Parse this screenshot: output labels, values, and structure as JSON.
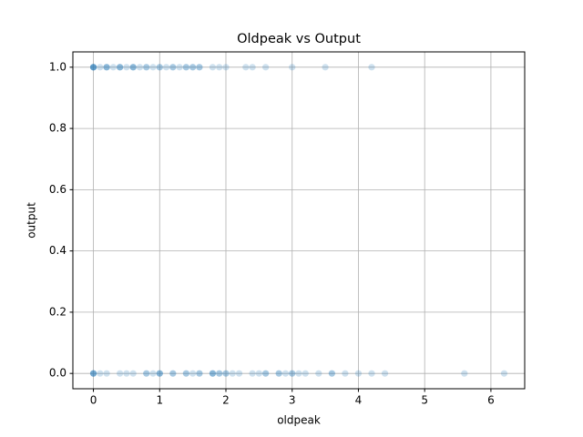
{
  "chart_data": {
    "type": "scatter",
    "title": "Oldpeak vs Output",
    "x_label": "oldpeak",
    "y_label": "output",
    "color": "#1f77b4",
    "alpha": 0.22,
    "grid": true,
    "xlim": [
      -0.31,
      6.51
    ],
    "ylim": [
      -0.05,
      1.05
    ],
    "xticks": [
      0,
      1,
      2,
      3,
      4,
      5,
      6
    ],
    "yticks": [
      {
        "value": 0,
        "label": "0.0"
      },
      {
        "value": 0.2,
        "label": "0.2"
      },
      {
        "value": 0.4,
        "label": "0.4"
      },
      {
        "value": 0.6,
        "label": "0.6"
      },
      {
        "value": 0.8,
        "label": "0.8"
      },
      {
        "value": 1,
        "label": "1.0"
      }
    ],
    "x": [
      0,
      0,
      0,
      0,
      0,
      0.1,
      0.2,
      0.2,
      0.2,
      0.3,
      0.4,
      0.4,
      0.4,
      0.5,
      0.6,
      0.6,
      0.6,
      0.7,
      0.8,
      0.8,
      0.9,
      1.0,
      1.0,
      1.1,
      1.2,
      1.2,
      1.3,
      1.4,
      1.4,
      1.5,
      1.5,
      1.6,
      1.6,
      1.8,
      1.9,
      2.0,
      2.3,
      2.4,
      2.6,
      3.0,
      3.5,
      4.2,
      0,
      0,
      0,
      0,
      0.1,
      0.2,
      0.4,
      0.5,
      0.6,
      0.8,
      0.8,
      0.9,
      1.0,
      1.0,
      1.0,
      1.2,
      1.2,
      1.4,
      1.4,
      1.5,
      1.6,
      1.6,
      1.8,
      1.8,
      1.8,
      1.9,
      1.9,
      2.0,
      2.0,
      2.1,
      2.2,
      2.4,
      2.5,
      2.6,
      2.6,
      2.8,
      2.8,
      2.9,
      3.0,
      3.0,
      3.1,
      3.2,
      3.4,
      3.6,
      3.6,
      3.8,
      4.0,
      4.2,
      4.4,
      5.6,
      6.2
    ],
    "values": [
      1,
      1,
      1,
      1,
      1,
      1,
      1,
      1,
      1,
      1,
      1,
      1,
      1,
      1,
      1,
      1,
      1,
      1,
      1,
      1,
      1,
      1,
      1,
      1,
      1,
      1,
      1,
      1,
      1,
      1,
      1,
      1,
      1,
      1,
      1,
      1,
      1,
      1,
      1,
      1,
      1,
      1,
      0,
      0,
      0,
      0,
      0,
      0,
      0,
      0,
      0,
      0,
      0,
      0,
      0,
      0,
      0,
      0,
      0,
      0,
      0,
      0,
      0,
      0,
      0,
      0,
      0,
      0,
      0,
      0,
      0,
      0,
      0,
      0,
      0,
      0,
      0,
      0,
      0,
      0,
      0,
      0,
      0,
      0,
      0,
      0,
      0,
      0,
      0,
      0,
      0,
      0,
      0
    ]
  }
}
